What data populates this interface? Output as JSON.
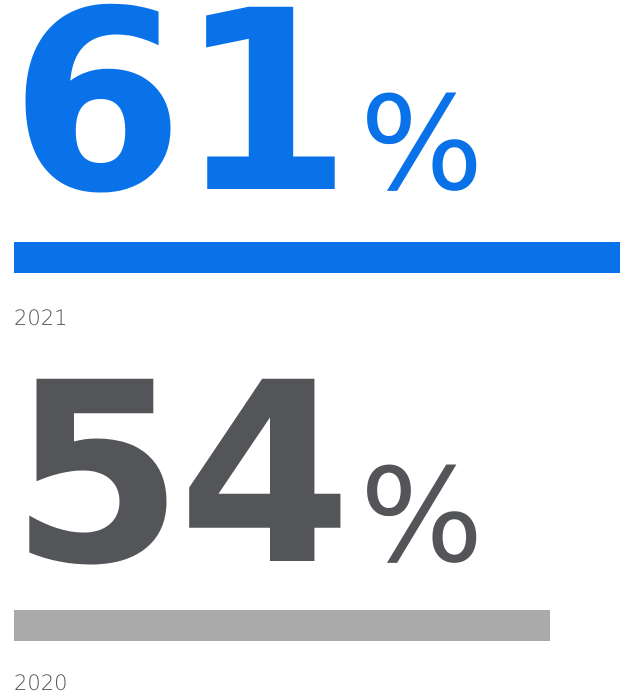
{
  "chart_data": {
    "type": "bar",
    "orientation": "horizontal",
    "categories": [
      "2021",
      "2020"
    ],
    "values": [
      61,
      54
    ],
    "unit": "%",
    "xlim": [
      0,
      100
    ],
    "series": [
      {
        "values": [
          61,
          54
        ]
      }
    ],
    "colors": {
      "2021": "#0a72e8",
      "2020": "#aaaaaa"
    },
    "value_text_colors": {
      "2021": "#0a72e8",
      "2020": "#545558"
    }
  },
  "stats": [
    {
      "year": "2021",
      "value": "61",
      "percent_sign": "%"
    },
    {
      "year": "2020",
      "value": "54",
      "percent_sign": "%"
    }
  ]
}
